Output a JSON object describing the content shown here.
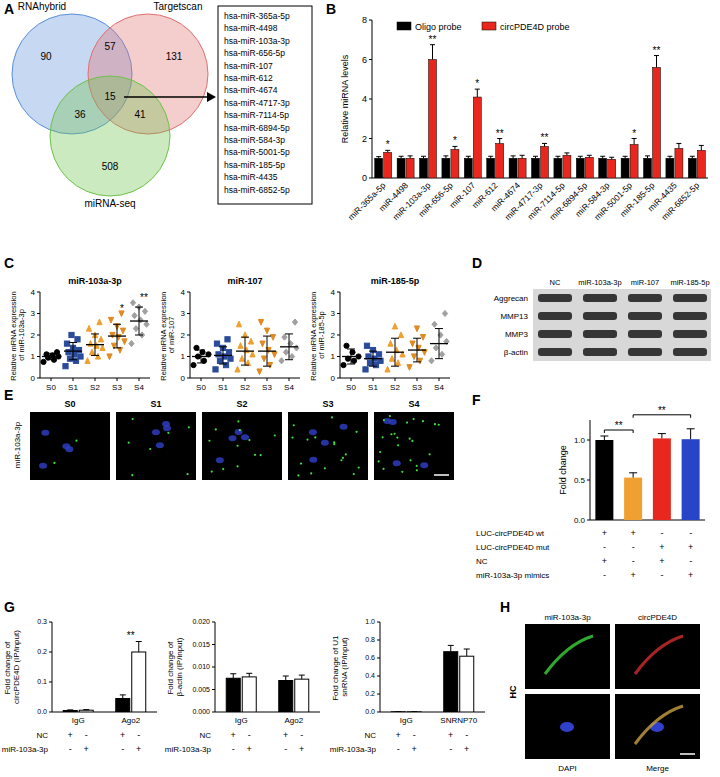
{
  "panel_labels": [
    "A",
    "B",
    "C",
    "D",
    "E",
    "F",
    "G",
    "H"
  ],
  "venn": {
    "sets": [
      "RNAhybrid",
      "Targetscan",
      "miRNA-seq"
    ],
    "colors": [
      "#5b8fd9",
      "#e07070",
      "#6cc24a"
    ],
    "regions": {
      "1": 90,
      "12": 57,
      "2": 131,
      "13": 36,
      "123": 15,
      "23": 41,
      "3": 508
    },
    "list": [
      "hsa-miR-365a-5p",
      "hsa-miR-4498",
      "hsa-miR-103a-3p",
      "hsa-miR-656-5p",
      "hsa-miR-107",
      "hsa-miR-612",
      "hsa-miR-4674",
      "hsa-miR-4717-3p",
      "hsa-miR-7114-5p",
      "hsa-miR-6894-5p",
      "hsa-miR-584-3p",
      "hsa-miR-5001-5p",
      "hsa-miR-185-5p",
      "hsa-miR-4435",
      "hsa-miR-6852-5p"
    ]
  },
  "chart_data": [
    {
      "type": "bar",
      "y_label": "Relative miRNA levels",
      "legend": "top-left",
      "categories": [
        "miR-365a-5p",
        "miR-4498",
        "miR-103a-3p",
        "miR-656-5p",
        "miR-107",
        "miR-612",
        "miR-4674",
        "miR-4717-3p",
        "miR-7114-5p",
        "miR-6894-5p",
        "miR-584-3p",
        "miR-5001-5p",
        "miR-185-5p",
        "miR-4435",
        "miR-6852-5p"
      ],
      "series": [
        {
          "name": "Oligo probe",
          "color": "#000000",
          "values": [
            1,
            1,
            1,
            1,
            1,
            1,
            1,
            1,
            1,
            1,
            1,
            1,
            1,
            1,
            1
          ],
          "errors": [
            0.08,
            0.1,
            0.1,
            0.12,
            0.1,
            0.1,
            0.12,
            0.1,
            0.1,
            0.1,
            0.1,
            0.1,
            0.12,
            0.1,
            0.1
          ]
        },
        {
          "name": "circPDE4D probe",
          "color": "#e8281f",
          "values": [
            1.3,
            1.0,
            6.0,
            1.45,
            4.1,
            1.75,
            1.0,
            1.6,
            1.15,
            1.05,
            0.95,
            1.7,
            5.6,
            1.5,
            1.4
          ],
          "errors": [
            0.1,
            0.12,
            0.75,
            0.15,
            0.4,
            0.25,
            0.15,
            0.15,
            0.12,
            0.1,
            0.1,
            0.3,
            0.6,
            0.25,
            0.25
          ]
        }
      ],
      "ylim": [
        0,
        8
      ],
      "yticks": [
        0,
        2,
        4,
        6,
        8
      ],
      "significance": [
        "*",
        null,
        "**",
        "*",
        "*",
        "**",
        null,
        "**",
        null,
        null,
        null,
        "*",
        "**",
        null,
        null
      ]
    },
    {
      "type": "strip",
      "title": "miR-103a-3p",
      "y_label": "Relative mRNA expression of miR-103a-3p",
      "categories": [
        "S0",
        "S1",
        "S2",
        "S3",
        "S4"
      ],
      "colors": [
        "#000000",
        "#2a4a9a",
        "#f0a030",
        "#e08a20",
        "#a0a0a0"
      ],
      "points": [
        [
          0.75,
          0.85,
          0.95,
          1.0,
          1.05,
          1.1,
          1.2
        ],
        [
          0.55,
          0.8,
          0.9,
          1.0,
          1.1,
          1.2,
          1.3,
          1.4,
          1.6,
          1.8,
          2.0
        ],
        [
          0.8,
          1.0,
          1.2,
          1.4,
          1.5,
          1.6,
          1.8,
          2.0,
          2.3,
          2.6
        ],
        [
          1.0,
          1.3,
          1.5,
          1.7,
          1.9,
          2.0,
          2.2,
          2.4,
          2.7,
          3.0
        ],
        [
          1.6,
          2.0,
          2.3,
          2.5,
          2.7,
          2.9,
          3.1,
          3.3,
          3.5
        ]
      ],
      "means": [
        1.0,
        1.25,
        1.55,
        1.95,
        2.65
      ],
      "sd": [
        0.15,
        0.4,
        0.5,
        0.55,
        0.65
      ],
      "ylim": [
        0,
        4
      ],
      "yticks": [
        0,
        1,
        2,
        3,
        4
      ],
      "significance": [
        null,
        null,
        null,
        "*",
        "**"
      ]
    },
    {
      "type": "strip",
      "title": "miR-107",
      "y_label": "Relative mRNA expression of miR-107",
      "categories": [
        "S0",
        "S1",
        "S2",
        "S3",
        "S4"
      ],
      "colors": [
        "#000000",
        "#2a4a9a",
        "#f0a030",
        "#e08a20",
        "#a0a0a0"
      ],
      "points": [
        [
          0.6,
          0.8,
          1.0,
          1.1,
          1.2,
          1.4
        ],
        [
          0.4,
          0.6,
          0.8,
          0.9,
          1.0,
          1.1,
          1.2,
          1.4,
          1.6,
          1.8
        ],
        [
          0.4,
          0.7,
          0.9,
          1.1,
          1.3,
          1.5,
          1.7,
          2.0,
          2.5
        ],
        [
          0.3,
          0.6,
          0.9,
          1.1,
          1.3,
          1.6,
          1.9,
          2.2,
          2.6
        ],
        [
          0.8,
          1.0,
          1.2,
          1.4,
          1.6,
          1.9,
          2.6
        ]
      ],
      "means": [
        1.0,
        1.05,
        1.25,
        1.25,
        1.45
      ],
      "sd": [
        0.3,
        0.4,
        0.65,
        0.7,
        0.6
      ],
      "ylim": [
        0,
        4
      ],
      "yticks": [
        0,
        1,
        2,
        3,
        4
      ]
    },
    {
      "type": "strip",
      "title": "miR-185-5p",
      "y_label": "Relative mRNA expression of miR-185-5p",
      "categories": [
        "S0",
        "S1",
        "S2",
        "S3",
        "S4"
      ],
      "colors": [
        "#000000",
        "#2a4a9a",
        "#f0a030",
        "#e08a20",
        "#a0a0a0"
      ],
      "points": [
        [
          0.6,
          0.8,
          0.9,
          1.0,
          1.2,
          1.5
        ],
        [
          0.4,
          0.6,
          0.7,
          0.8,
          0.9,
          1.0,
          1.1,
          1.3,
          1.5
        ],
        [
          0.4,
          0.7,
          0.9,
          1.1,
          1.3,
          1.6,
          2.0,
          2.4
        ],
        [
          0.5,
          0.8,
          1.0,
          1.2,
          1.4,
          1.6,
          1.9,
          2.3
        ],
        [
          0.8,
          1.1,
          1.4,
          1.7,
          2.0,
          2.5,
          3.0
        ]
      ],
      "means": [
        1.0,
        0.9,
        1.2,
        1.3,
        1.6
      ],
      "sd": [
        0.35,
        0.35,
        0.65,
        0.55,
        0.7
      ],
      "ylim": [
        0,
        4
      ],
      "yticks": [
        0,
        1,
        2,
        3,
        4
      ]
    },
    {
      "type": "bar",
      "y_label": "Fold change",
      "values": [
        1.0,
        0.53,
        1.02,
        1.01
      ],
      "errors": [
        0.05,
        0.06,
        0.06,
        0.13
      ],
      "colors": [
        "#000000",
        "#f0a030",
        "#e8281f",
        "#2845c8"
      ],
      "ylim": [
        0,
        1.25
      ],
      "yticks": [
        {
          "value": 0,
          "label": "0.0"
        },
        0.5,
        {
          "value": 1,
          "label": "1.0"
        }
      ],
      "brackets": [
        {
          "from": 0,
          "to": 1,
          "label": "**"
        },
        {
          "from": 1,
          "to": 3,
          "label": "**"
        }
      ],
      "conditions": [
        {
          "label": "LUC-circPDE4D wt",
          "values": [
            "+",
            "+",
            "-",
            "-"
          ]
        },
        {
          "label": "LUC-circPDE4D mut",
          "values": [
            "-",
            "-",
            "+",
            "+"
          ]
        },
        {
          "label": "NC",
          "values": [
            "+",
            "-",
            "+",
            "-"
          ]
        },
        {
          "label": "miR-103a-3p mimics",
          "values": [
            "-",
            "+",
            "-",
            "+"
          ]
        }
      ]
    },
    {
      "type": "bar",
      "y_label": "Fold change of circPDE4D (IP/input)",
      "categories": [
        "IgG",
        "Ago2"
      ],
      "series": [
        {
          "color": "#000000",
          "values": [
            0.005,
            0.045
          ],
          "errors": [
            0.002,
            0.012
          ]
        },
        {
          "color": "#ffffff",
          "values": [
            0.006,
            0.2
          ],
          "errors": [
            0.002,
            0.035
          ]
        }
      ],
      "ylim": [
        0,
        0.3
      ],
      "yticks": [
        {
          "value": 0,
          "label": "0.0"
        },
        0.1,
        0.2,
        0.3
      ],
      "significance": [
        null,
        "**"
      ],
      "conditions": [
        {
          "label": "NC",
          "values": [
            "+",
            "-",
            "+",
            "-"
          ]
        },
        {
          "label": "miR-103a-3p",
          "values": [
            "-",
            "+",
            "-",
            "+"
          ]
        }
      ]
    },
    {
      "type": "bar",
      "y_label": "Fold change of β-actin (IP/input)",
      "categories": [
        "IgG",
        "Ago2"
      ],
      "series": [
        {
          "color": "#000000",
          "values": [
            0.0075,
            0.007
          ],
          "errors": [
            0.001,
            0.001
          ]
        },
        {
          "color": "#ffffff",
          "values": [
            0.0078,
            0.0073
          ],
          "errors": [
            0.0008,
            0.0009
          ]
        }
      ],
      "ylim": [
        0,
        0.02
      ],
      "yticks": [
        {
          "value": 0,
          "label": "0.000"
        },
        0.005,
        {
          "value": 0.01,
          "label": "0.010"
        },
        0.015,
        {
          "value": 0.02,
          "label": "0.020"
        }
      ],
      "conditions": [
        {
          "label": "NC",
          "values": [
            "+",
            "-",
            "+",
            "-"
          ]
        },
        {
          "label": "miR-103a-3p",
          "values": [
            "-",
            "+",
            "-",
            "+"
          ]
        }
      ]
    },
    {
      "type": "bar",
      "y_label": "Fold change of U1 snRNA (IP/input)",
      "categories": [
        "IgG",
        "SNRNP70"
      ],
      "series": [
        {
          "color": "#000000",
          "values": [
            0.002,
            0.67
          ],
          "errors": [
            0.001,
            0.07
          ]
        },
        {
          "color": "#ffffff",
          "values": [
            0.002,
            0.62
          ],
          "errors": [
            0.001,
            0.08
          ]
        }
      ],
      "ylim": [
        0,
        1
      ],
      "yticks": [
        {
          "value": 0,
          "label": "0.0"
        },
        0.2,
        0.4,
        0.6,
        0.8,
        {
          "value": 1,
          "label": "1.0"
        }
      ],
      "conditions": [
        {
          "label": "NC",
          "values": [
            "+",
            "-",
            "+",
            "-"
          ]
        },
        {
          "label": "miR-103a-3p",
          "values": [
            "-",
            "+",
            "-",
            "+"
          ]
        }
      ]
    }
  ],
  "blot": {
    "lanes": [
      "NC",
      "miR-103a-3p",
      "miR-107",
      "miR-185-5p"
    ],
    "rows": [
      "Aggrecan",
      "MMP13",
      "MMP3",
      "β-actin"
    ]
  },
  "fish_stages": {
    "title": "miR-103a-3p",
    "labels": [
      "S0",
      "S1",
      "S2",
      "S3",
      "S4"
    ]
  },
  "colocalization": {
    "row_label": "HC",
    "top_labels": [
      "miR-103a-3p",
      "circPDE4D"
    ],
    "bottom_labels": [
      "DAPI",
      "Merge"
    ]
  }
}
